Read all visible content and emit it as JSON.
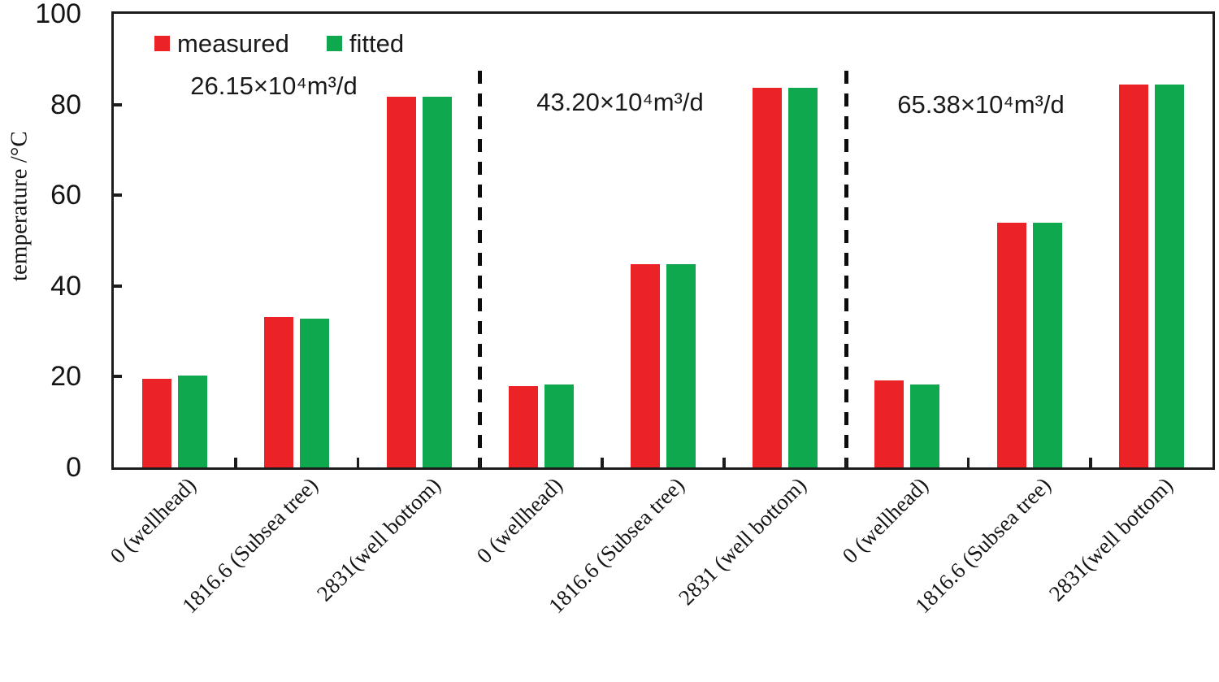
{
  "chart_data": {
    "type": "bar",
    "title": "",
    "xlabel": "",
    "ylabel": "temperature /°C",
    "ylim": [
      0,
      100
    ],
    "yticks": [
      0,
      20,
      40,
      60,
      80,
      100
    ],
    "grid": false,
    "legend_position": "top-left-inside",
    "series_names": [
      "measured",
      "fitted"
    ],
    "colors": {
      "measured": "#EB2327",
      "fitted": "#0FA84E",
      "axis": "#1C1C1C",
      "text": "#141414"
    },
    "groups": [
      {
        "label": "26.15×10⁴m³/d",
        "categories": [
          "0 (wellhead)",
          "1816.6 (Subsea tree)",
          "2831(well bottom)"
        ],
        "series": [
          {
            "name": "measured",
            "values": [
              19.5,
              33.2,
              81.8
            ]
          },
          {
            "name": "fitted",
            "values": [
              20.2,
              32.8,
              81.8
            ]
          }
        ]
      },
      {
        "label": "43.20×10⁴m³/d",
        "categories": [
          "0 (wellhead)",
          "1816.6 (Subsea tree)",
          "2831 (well bottom)"
        ],
        "series": [
          {
            "name": "measured",
            "values": [
              18.0,
              44.8,
              83.7
            ]
          },
          {
            "name": "fitted",
            "values": [
              18.3,
              44.8,
              83.7
            ]
          }
        ]
      },
      {
        "label": "65.38×10⁴m³/d",
        "categories": [
          "0 (wellhead)",
          "1816.6 (Subsea tree)",
          "2831(well bottom)"
        ],
        "series": [
          {
            "name": "measured",
            "values": [
              19.2,
              54.0,
              84.5
            ]
          },
          {
            "name": "fitted",
            "values": [
              18.3,
              54.0,
              84.5
            ]
          }
        ]
      }
    ]
  }
}
